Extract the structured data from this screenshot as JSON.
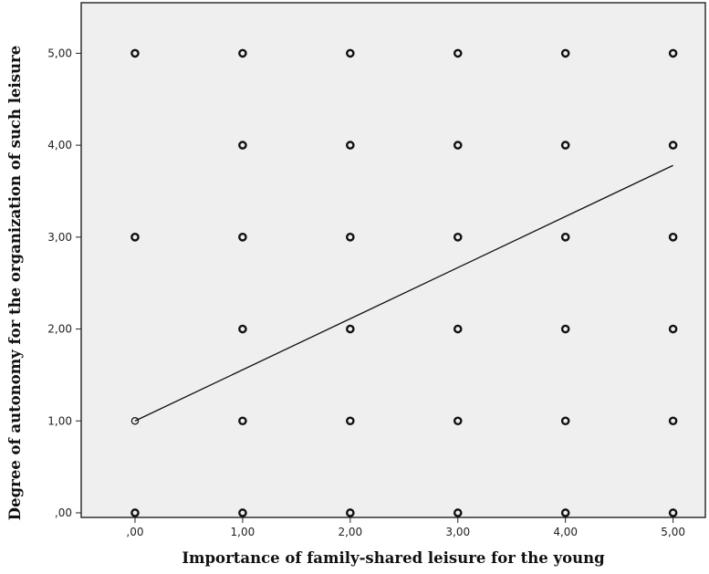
{
  "chart_data": {
    "type": "scatter",
    "xlabel": "Importance of family-shared leisure for the young",
    "ylabel": "Degree of autonomy for the organization of such leisure",
    "xlim": [
      -0.5,
      5.3
    ],
    "ylim": [
      -0.05,
      5.55
    ],
    "x_ticks": [
      0,
      1,
      2,
      3,
      4,
      5
    ],
    "x_tick_labels": [
      ",00",
      "1,00",
      "2,00",
      "3,00",
      "4,00",
      "5,00"
    ],
    "y_ticks": [
      0,
      1,
      2,
      3,
      4,
      5
    ],
    "y_tick_labels": [
      ",00",
      "1,00",
      "2,00",
      "3,00",
      "4,00",
      "5,00"
    ],
    "grid": false,
    "points": [
      {
        "x": 0,
        "y": 5
      },
      {
        "x": 0,
        "y": 3
      },
      {
        "x": 0,
        "y": 1
      },
      {
        "x": 0,
        "y": 0
      },
      {
        "x": 1,
        "y": 5
      },
      {
        "x": 1,
        "y": 4
      },
      {
        "x": 1,
        "y": 3
      },
      {
        "x": 1,
        "y": 2
      },
      {
        "x": 1,
        "y": 1
      },
      {
        "x": 1,
        "y": 0
      },
      {
        "x": 2,
        "y": 5
      },
      {
        "x": 2,
        "y": 4
      },
      {
        "x": 2,
        "y": 3
      },
      {
        "x": 2,
        "y": 2
      },
      {
        "x": 2,
        "y": 1
      },
      {
        "x": 2,
        "y": 0
      },
      {
        "x": 3,
        "y": 5
      },
      {
        "x": 3,
        "y": 4
      },
      {
        "x": 3,
        "y": 3
      },
      {
        "x": 3,
        "y": 2
      },
      {
        "x": 3,
        "y": 1
      },
      {
        "x": 3,
        "y": 0
      },
      {
        "x": 4,
        "y": 5
      },
      {
        "x": 4,
        "y": 4
      },
      {
        "x": 4,
        "y": 3
      },
      {
        "x": 4,
        "y": 2
      },
      {
        "x": 4,
        "y": 1
      },
      {
        "x": 4,
        "y": 0
      },
      {
        "x": 5,
        "y": 5
      },
      {
        "x": 5,
        "y": 4
      },
      {
        "x": 5,
        "y": 3
      },
      {
        "x": 5,
        "y": 2
      },
      {
        "x": 5,
        "y": 1
      },
      {
        "x": 5,
        "y": 0
      }
    ],
    "fit_line": {
      "x": [
        0,
        5
      ],
      "y": [
        1.0,
        3.78
      ]
    },
    "colors": {
      "plot_background": "#efefef",
      "marker": "#111111",
      "line": "#111111"
    }
  }
}
